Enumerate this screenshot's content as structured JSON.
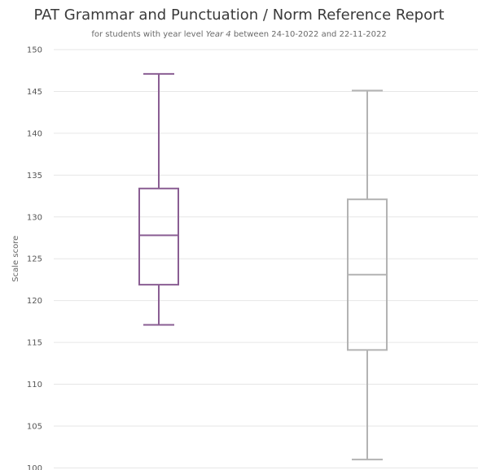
{
  "chart_data": {
    "type": "box",
    "title": "PAT Grammar and Punctuation / Norm Reference Report",
    "subtitle": {
      "prefix": "for students with year level ",
      "year_level": "Year 4",
      "between": " between ",
      "start_date": "24-10-2022",
      "and": " and ",
      "end_date": "22-11-2022"
    },
    "ylabel": "Scale score",
    "ylim": [
      100,
      150
    ],
    "yticks": [
      100,
      105,
      110,
      115,
      120,
      125,
      130,
      135,
      140,
      145,
      150
    ],
    "grid": true,
    "series": [
      {
        "color": "#8a5e93",
        "stroke_width": 2,
        "values": {
          "min": 117.1,
          "q1": 121.9,
          "median": 127.8,
          "q3": 133.4,
          "max": 147.1
        }
      },
      {
        "color": "#b3b3b3",
        "stroke_width": 2,
        "values": {
          "min": 101,
          "q1": 114.1,
          "median": 123.1,
          "q3": 132.1,
          "max": 145.1
        }
      }
    ]
  }
}
